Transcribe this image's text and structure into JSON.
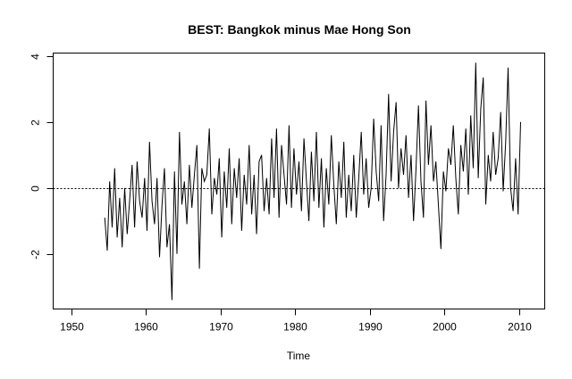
{
  "chart_data": {
    "type": "line",
    "title": "BEST: Bangkok minus Mae Hong Son",
    "xlabel": "Time",
    "ylabel": "",
    "xlim": [
      1947.6,
      2013.4
    ],
    "ylim": [
      -3.67,
      4.09
    ],
    "x_ticks": [
      1950,
      1960,
      1970,
      1980,
      1990,
      2000,
      2010
    ],
    "y_ticks": [
      -2,
      0,
      2,
      4
    ],
    "reference_line": {
      "y": 0,
      "style": "dotted"
    },
    "grid": false,
    "legend": "none",
    "series": [
      {
        "name": "Bangkok minus Mae Hong Son",
        "start": 1954.5,
        "frequency": 3,
        "values": [
          -0.9,
          -1.9,
          0.2,
          -1.2,
          0.6,
          -1.5,
          -0.3,
          -1.8,
          0.0,
          -1.4,
          -0.4,
          0.7,
          -1.2,
          0.8,
          -0.4,
          -0.9,
          0.3,
          -1.3,
          1.4,
          -0.4,
          -1.1,
          0.3,
          -2.1,
          -0.5,
          0.6,
          -1.8,
          -1.1,
          -3.4,
          0.5,
          -2.0,
          1.7,
          -0.5,
          0.2,
          -1.1,
          0.7,
          -0.6,
          0.4,
          1.3,
          -2.45,
          0.6,
          0.2,
          0.4,
          1.8,
          -0.8,
          0.3,
          -0.2,
          0.9,
          -1.5,
          0.5,
          -0.6,
          1.2,
          -1.1,
          0.6,
          -0.3,
          0.9,
          -1.3,
          0.4,
          -0.5,
          1.3,
          -0.8,
          0.4,
          -1.4,
          0.8,
          1.0,
          -0.7,
          0.3,
          -0.8,
          1.5,
          -0.3,
          1.8,
          -0.9,
          1.3,
          0.4,
          -0.5,
          1.9,
          -0.6,
          1.2,
          -0.2,
          0.8,
          -0.7,
          1.5,
          0.2,
          -1.0,
          1.1,
          -0.4,
          1.7,
          -0.6,
          0.9,
          -1.2,
          0.6,
          -0.5,
          1.6,
          0.1,
          -1.1,
          0.8,
          -0.3,
          1.4,
          -0.9,
          0.4,
          -0.7,
          1.0,
          -0.9,
          0.3,
          1.7,
          -0.2,
          0.9,
          -0.6,
          0.0,
          2.1,
          0.5,
          -0.4,
          1.9,
          -1.0,
          0.4,
          2.85,
          0.2,
          1.7,
          2.6,
          0.0,
          1.2,
          0.4,
          1.6,
          -0.3,
          1.0,
          -1.0,
          0.6,
          2.5,
          0.2,
          -0.9,
          2.65,
          0.7,
          1.9,
          0.2,
          0.8,
          -0.5,
          -1.85,
          0.5,
          -0.1,
          1.2,
          0.7,
          1.9,
          0.3,
          -0.8,
          1.3,
          0.5,
          1.8,
          -0.2,
          2.2,
          0.6,
          3.8,
          0.3,
          2.4,
          3.35,
          -0.5,
          1.0,
          0.2,
          1.7,
          0.4,
          0.9,
          2.3,
          -0.1,
          1.4,
          3.65,
          0.0,
          -0.7,
          0.9,
          -0.8,
          2.0
        ]
      }
    ]
  }
}
